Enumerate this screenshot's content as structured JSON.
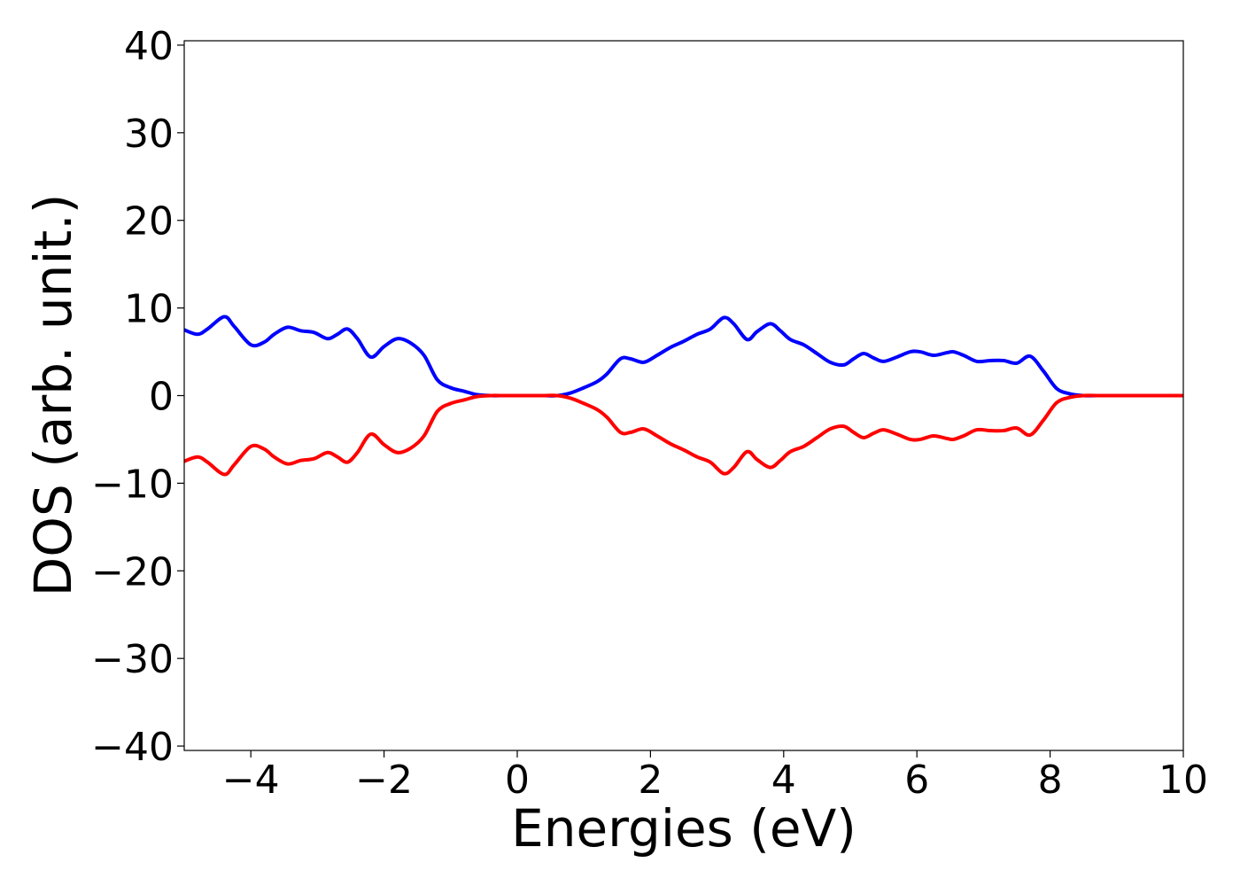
{
  "chart_data": {
    "type": "line",
    "title": "",
    "xlabel": "Energies (eV)",
    "ylabel": "DOS (arb. unit.)",
    "xlim": [
      -5,
      10
    ],
    "ylim": [
      -40.5,
      40.5
    ],
    "xticks": [
      -4,
      -2,
      0,
      2,
      4,
      6,
      8,
      10
    ],
    "xtick_labels": [
      "−4",
      "−2",
      "0",
      "2",
      "4",
      "6",
      "8",
      "10"
    ],
    "yticks": [
      40,
      30,
      20,
      10,
      0,
      -10,
      -20,
      -30,
      -40
    ],
    "ytick_labels": [
      "40",
      "30",
      "20",
      "10",
      "0",
      "−10",
      "−20",
      "−30",
      "−40"
    ],
    "grid": false,
    "legend": "none",
    "series": [
      {
        "color": "#0000ff",
        "x": [
          -5.0,
          -4.8,
          -4.65,
          -4.4,
          -4.25,
          -4.0,
          -3.8,
          -3.65,
          -3.45,
          -3.25,
          -3.05,
          -2.85,
          -2.7,
          -2.55,
          -2.4,
          -2.2,
          -2.0,
          -1.8,
          -1.6,
          -1.4,
          -1.2,
          -1.0,
          -0.8,
          -0.6,
          -0.4,
          -0.2,
          0.0,
          0.2,
          0.4,
          0.6,
          0.8,
          1.0,
          1.2,
          1.35,
          1.55,
          1.7,
          1.9,
          2.1,
          2.3,
          2.5,
          2.7,
          2.9,
          3.1,
          3.25,
          3.45,
          3.6,
          3.8,
          3.95,
          4.1,
          4.3,
          4.5,
          4.7,
          4.9,
          5.05,
          5.2,
          5.35,
          5.5,
          5.7,
          5.9,
          6.05,
          6.25,
          6.45,
          6.55,
          6.7,
          6.9,
          7.1,
          7.3,
          7.5,
          7.7,
          7.9,
          8.1,
          8.3,
          8.5,
          8.7,
          9.0,
          9.5,
          10.0
        ],
        "values": [
          7.5,
          7.0,
          7.6,
          9.0,
          7.9,
          5.8,
          6.1,
          7.0,
          7.8,
          7.4,
          7.2,
          6.5,
          7.0,
          7.6,
          6.5,
          4.4,
          5.6,
          6.5,
          6.0,
          4.6,
          1.8,
          0.9,
          0.5,
          0.1,
          0.0,
          0.0,
          0.0,
          0.0,
          0.0,
          0.0,
          0.3,
          0.9,
          1.6,
          2.5,
          4.2,
          4.2,
          3.8,
          4.6,
          5.5,
          6.2,
          7.0,
          7.6,
          8.9,
          8.2,
          6.4,
          7.3,
          8.2,
          7.4,
          6.4,
          5.8,
          4.8,
          3.8,
          3.5,
          4.2,
          4.8,
          4.3,
          3.9,
          4.4,
          5.0,
          5.0,
          4.6,
          4.9,
          5.0,
          4.6,
          3.9,
          4.0,
          4.0,
          3.7,
          4.5,
          2.8,
          0.8,
          0.2,
          0.0,
          0.0,
          0.0,
          0.0,
          0.0
        ]
      },
      {
        "color": "#ff0000",
        "x": [
          -5.0,
          -4.8,
          -4.65,
          -4.4,
          -4.25,
          -4.0,
          -3.8,
          -3.65,
          -3.45,
          -3.25,
          -3.05,
          -2.85,
          -2.7,
          -2.55,
          -2.4,
          -2.2,
          -2.0,
          -1.8,
          -1.6,
          -1.4,
          -1.2,
          -1.0,
          -0.8,
          -0.6,
          -0.4,
          -0.2,
          0.0,
          0.2,
          0.4,
          0.6,
          0.8,
          1.0,
          1.2,
          1.35,
          1.55,
          1.7,
          1.9,
          2.1,
          2.3,
          2.5,
          2.7,
          2.9,
          3.1,
          3.25,
          3.45,
          3.6,
          3.8,
          3.95,
          4.1,
          4.3,
          4.5,
          4.7,
          4.9,
          5.05,
          5.2,
          5.35,
          5.5,
          5.7,
          5.9,
          6.05,
          6.25,
          6.45,
          6.55,
          6.7,
          6.9,
          7.1,
          7.3,
          7.5,
          7.7,
          7.9,
          8.1,
          8.3,
          8.5,
          8.7,
          9.0,
          9.5,
          10.0
        ],
        "values": [
          -7.5,
          -7.0,
          -7.6,
          -9.0,
          -7.9,
          -5.8,
          -6.1,
          -7.0,
          -7.8,
          -7.4,
          -7.2,
          -6.5,
          -7.0,
          -7.6,
          -6.5,
          -4.4,
          -5.6,
          -6.5,
          -6.0,
          -4.6,
          -1.8,
          -0.9,
          -0.5,
          -0.1,
          0.0,
          0.0,
          0.0,
          0.0,
          0.0,
          0.0,
          -0.3,
          -0.9,
          -1.6,
          -2.5,
          -4.2,
          -4.2,
          -3.8,
          -4.6,
          -5.5,
          -6.2,
          -7.0,
          -7.6,
          -8.9,
          -8.2,
          -6.4,
          -7.3,
          -8.2,
          -7.4,
          -6.4,
          -5.8,
          -4.8,
          -3.8,
          -3.5,
          -4.2,
          -4.8,
          -4.3,
          -3.9,
          -4.4,
          -5.0,
          -5.0,
          -4.6,
          -4.9,
          -5.0,
          -4.6,
          -3.9,
          -4.0,
          -4.0,
          -3.7,
          -4.5,
          -2.8,
          -0.8,
          -0.2,
          0.0,
          0.0,
          0.0,
          0.0,
          0.0
        ]
      }
    ]
  }
}
